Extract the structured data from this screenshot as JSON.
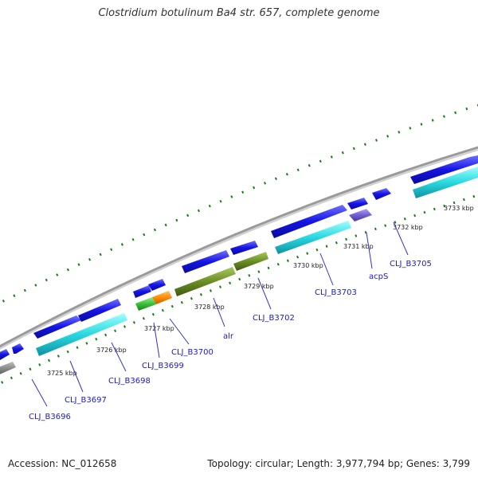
{
  "title": "Clostridium botulinum Ba4 str. 657, complete genome",
  "footer": {
    "accession": "Accession: NC_012658",
    "stats": "Topology: circular; Length: 3,977,794 bp; Genes: 3,799"
  },
  "tick_labels": [
    "3725 kbp",
    "3726 kbp",
    "3727 kbp",
    "3728 kbp",
    "3729 kbp",
    "3730 kbp",
    "3731 kbp",
    "3732 kbp",
    "3733 kbp"
  ],
  "gene_labels": [
    "CLJ_B3696",
    "CLJ_B3697",
    "CLJ_B3698",
    "CLJ_B3699",
    "CLJ_B3700",
    "alr",
    "CLJ_B3702",
    "CLJ_B3703",
    "acpS",
    "CLJ_B3705"
  ],
  "colors": {
    "cds": "#1010e0",
    "cds_light": "#6a6aff",
    "rna_cyan": "#28d8e0",
    "olive": "#6b8e23",
    "green": "#38c038",
    "orange": "#ff8c00",
    "lavender": "#7060d0",
    "gray_backbone": "#888888",
    "tick_green": "#1a7a1a",
    "label_blue": "#1a1acc",
    "leader_blue": "#3333cc"
  }
}
